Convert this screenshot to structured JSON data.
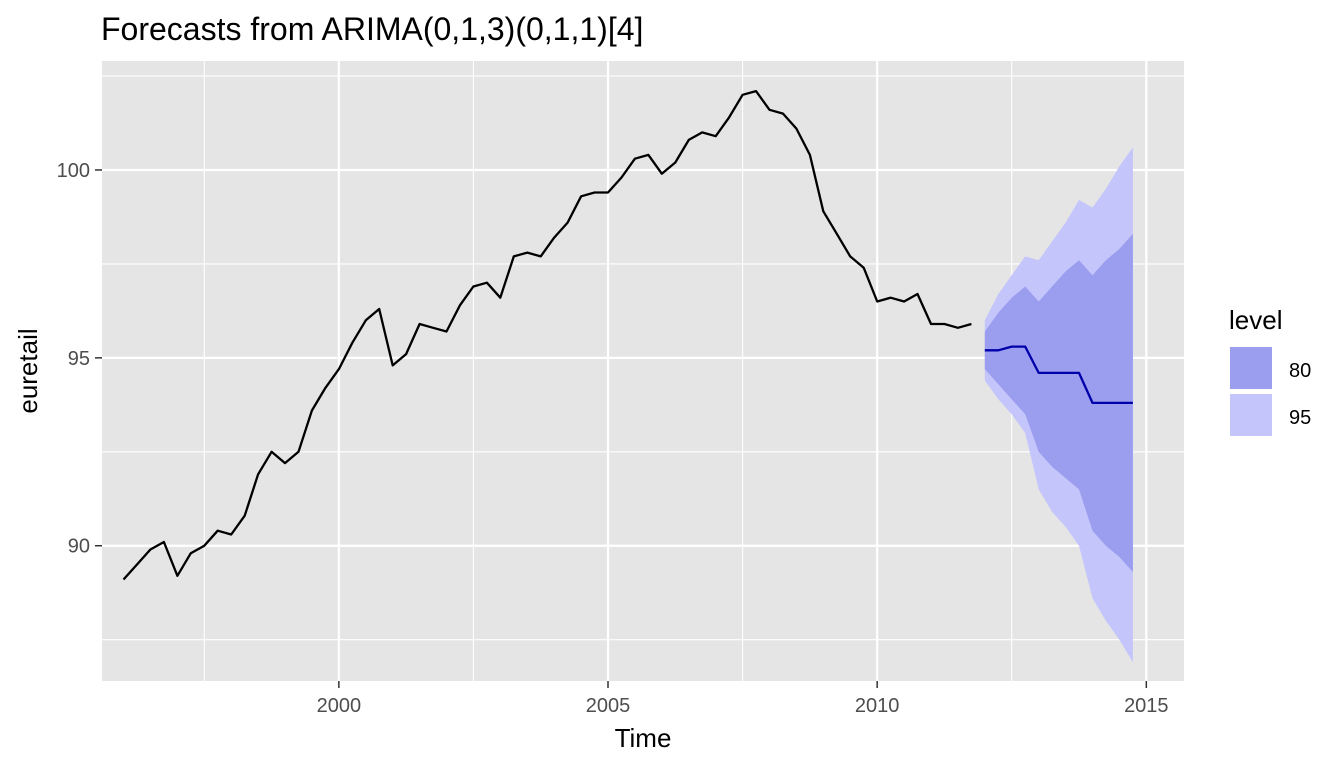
{
  "chart_data": {
    "type": "line",
    "title": "Forecasts from ARIMA(0,1,3)(0,1,1)[4]",
    "xlabel": "Time",
    "ylabel": "euretail",
    "xlim": [
      1995.6,
      2015.7
    ],
    "ylim": [
      86.4,
      102.9
    ],
    "x_ticks": [
      2000,
      2005,
      2010,
      2015
    ],
    "y_ticks": [
      90,
      95,
      100
    ],
    "grid": true,
    "legend": {
      "title": "level",
      "position": "right",
      "entries": [
        "80",
        "95"
      ]
    },
    "colors": {
      "panel": "#e5e5e5",
      "grid": "#ffffff",
      "history": "#000000",
      "forecast": "#0000aa",
      "band80": "#9b9def",
      "band95": "#c4c5fb"
    },
    "history": {
      "start": 1996.0,
      "step": 0.25,
      "values": [
        89.1,
        89.5,
        89.9,
        90.1,
        89.2,
        89.8,
        90.0,
        90.4,
        90.3,
        90.8,
        91.9,
        92.5,
        92.2,
        92.5,
        93.6,
        94.2,
        94.7,
        95.4,
        96.0,
        96.3,
        94.8,
        95.1,
        95.9,
        95.8,
        95.7,
        96.4,
        96.9,
        97.0,
        96.6,
        97.7,
        97.8,
        97.7,
        98.2,
        98.6,
        99.3,
        99.4,
        99.4,
        99.8,
        100.3,
        100.4,
        99.9,
        100.2,
        100.8,
        101.0,
        100.9,
        101.4,
        102.0,
        102.1,
        101.6,
        101.5,
        101.1,
        100.4,
        98.9,
        98.3,
        97.7,
        97.4,
        96.5,
        96.6,
        96.5,
        96.7,
        95.9,
        95.9,
        95.8,
        95.9
      ]
    },
    "forecast": {
      "start": 2012.0,
      "step": 0.25,
      "mean": [
        95.2,
        95.2,
        95.3,
        95.3,
        94.6,
        94.6,
        94.6,
        94.6,
        93.8,
        93.8,
        93.8,
        93.8
      ],
      "lo80": [
        94.7,
        94.3,
        93.9,
        93.5,
        92.5,
        92.1,
        91.8,
        91.5,
        90.4,
        90.0,
        89.7,
        89.3
      ],
      "hi80": [
        95.7,
        96.2,
        96.6,
        96.9,
        96.5,
        96.9,
        97.3,
        97.6,
        97.2,
        97.6,
        97.9,
        98.3
      ],
      "lo95": [
        94.4,
        93.9,
        93.5,
        93.0,
        91.5,
        90.9,
        90.5,
        90.0,
        88.6,
        88.0,
        87.5,
        86.9
      ],
      "hi95": [
        96.0,
        96.7,
        97.2,
        97.7,
        97.6,
        98.1,
        98.6,
        99.2,
        99.0,
        99.5,
        100.1,
        100.6
      ]
    }
  }
}
